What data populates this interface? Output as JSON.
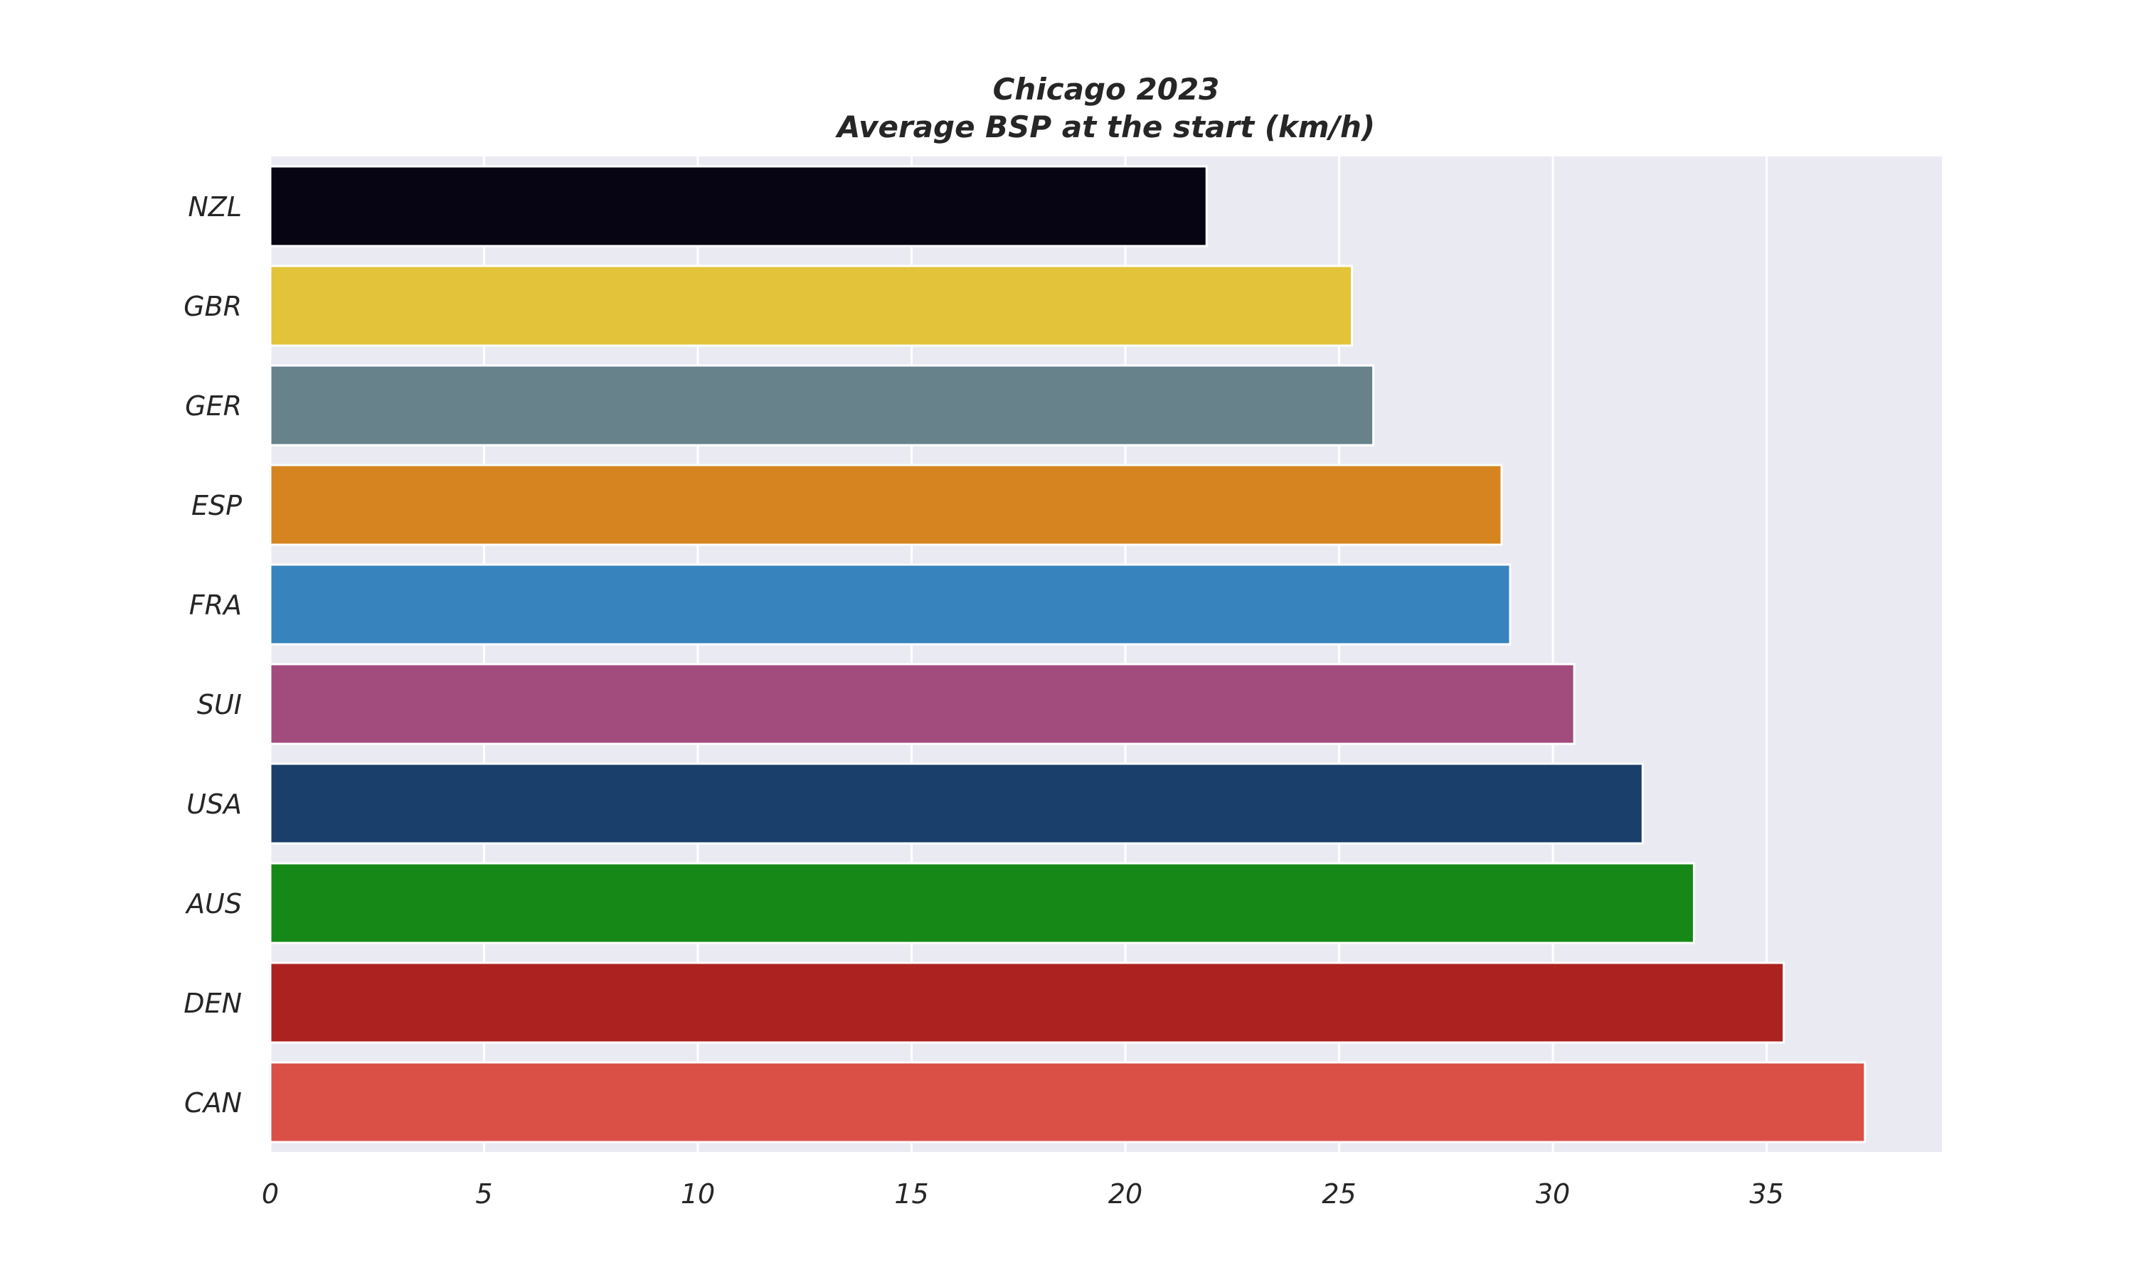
{
  "chart_data": {
    "type": "bar",
    "orientation": "horizontal",
    "title": "Chicago 2023",
    "subtitle": "Average BSP at the start (km/h)",
    "categories": [
      "NZL",
      "GBR",
      "GER",
      "ESP",
      "FRA",
      "SUI",
      "USA",
      "AUS",
      "DEN",
      "CAN"
    ],
    "values": [
      21.9,
      25.3,
      25.8,
      28.8,
      29.0,
      30.5,
      32.1,
      33.3,
      35.4,
      37.3
    ],
    "colors": [
      "#070514",
      "#e2c33a",
      "#67828b",
      "#d6841f",
      "#3783bd",
      "#a24b7d",
      "#1a3f6a",
      "#158818",
      "#ac2220",
      "#da5047"
    ],
    "xlabel": "",
    "ylabel": "",
    "xlim": [
      0,
      39.1
    ],
    "xticks": [
      0,
      5,
      10,
      15,
      20,
      25,
      30,
      35
    ],
    "grid": true,
    "background": "#eaeaf2"
  }
}
